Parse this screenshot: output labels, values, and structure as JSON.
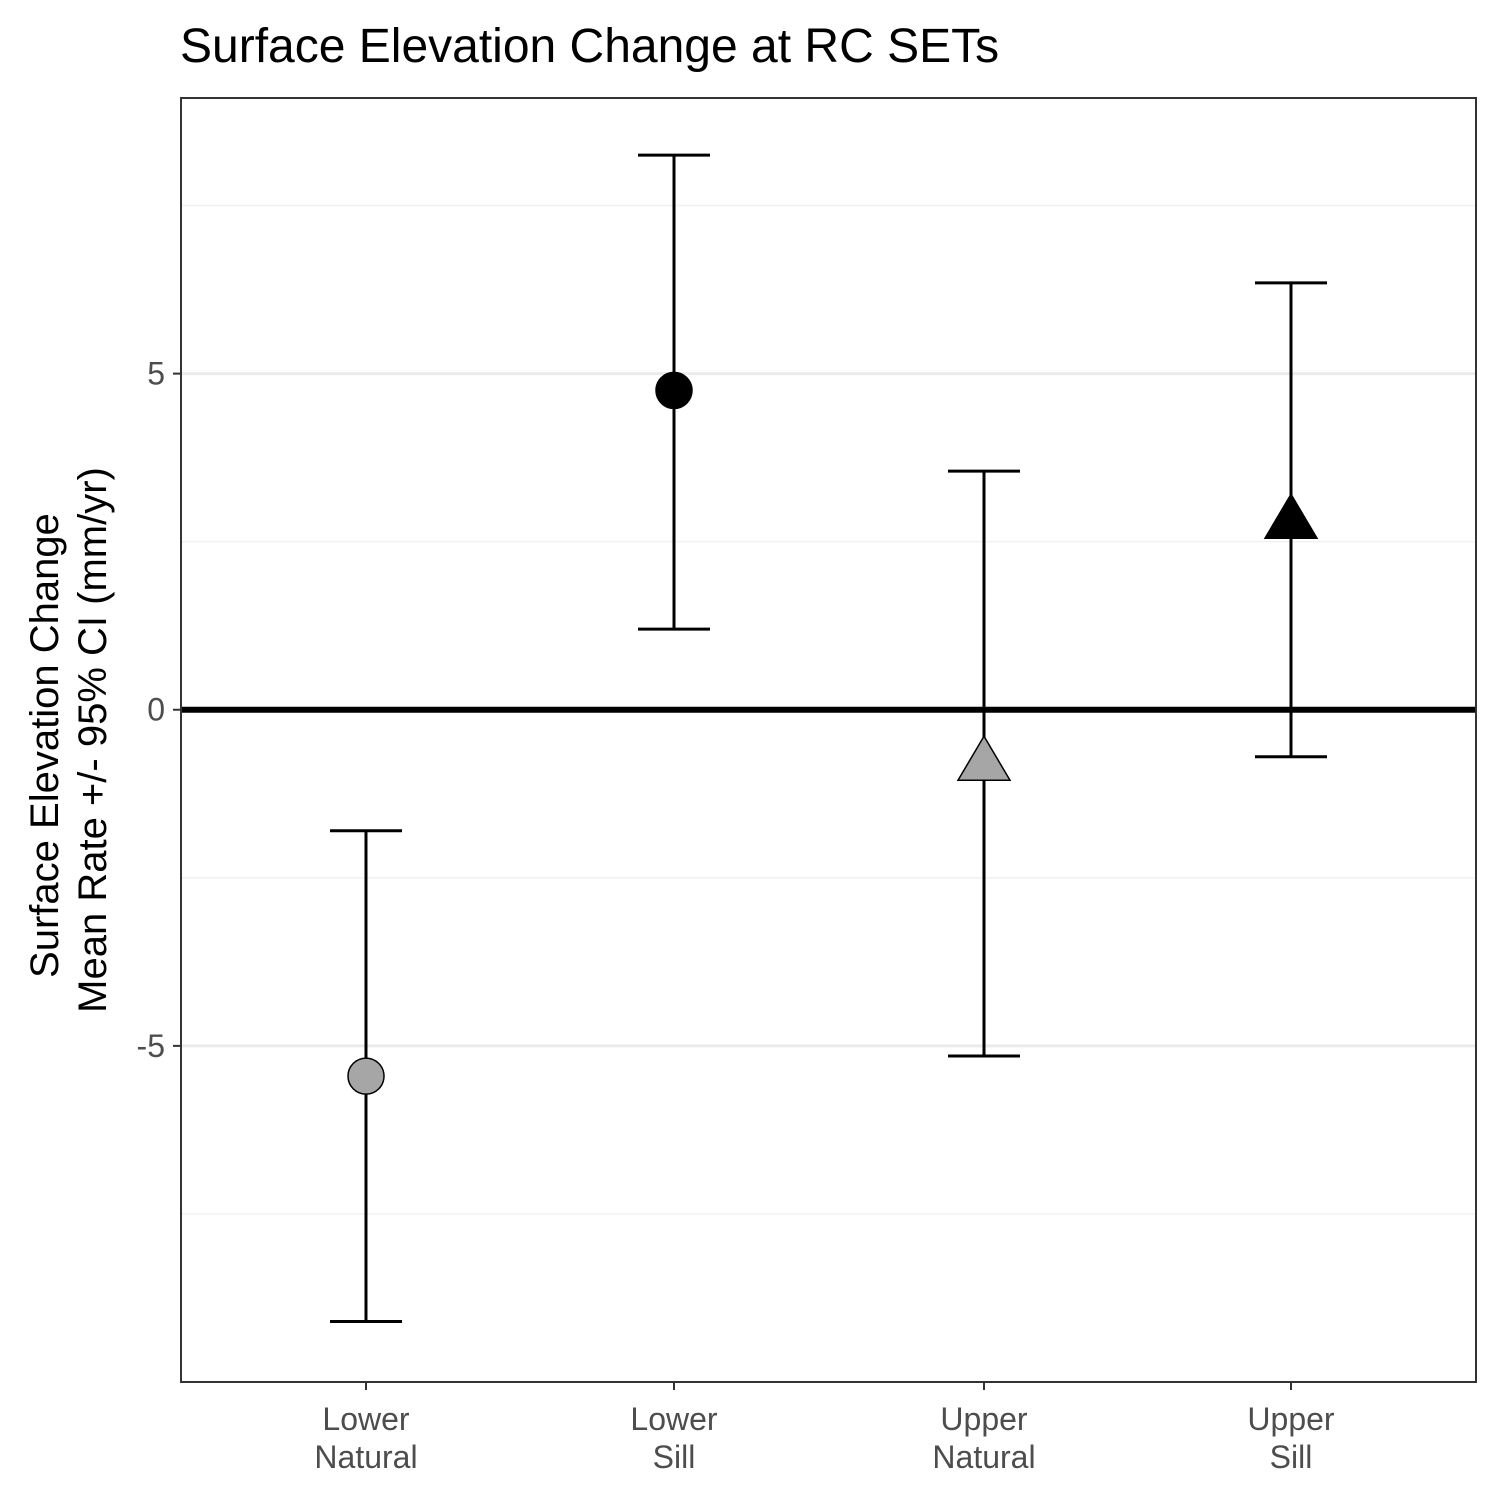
{
  "chart_data": {
    "type": "scatter",
    "title": "Surface Elevation Change at RC SETs",
    "xlabel": "",
    "ylabel_lines": [
      "Surface Elevation Change",
      "Mean Rate +/- 95% CI (mm/yr)"
    ],
    "ylim": [
      -10,
      9.1
    ],
    "yticks": [
      -5,
      0,
      5
    ],
    "ytick_labels": [
      "-5",
      "0",
      "5"
    ],
    "y_minor_grid": [
      -7.5,
      -2.5,
      2.5,
      7.5
    ],
    "reference_line_y": 0,
    "categories": [
      {
        "lines": [
          "Lower",
          "Natural"
        ]
      },
      {
        "lines": [
          "Lower",
          "Sill"
        ]
      },
      {
        "lines": [
          "Upper",
          "Natural"
        ]
      },
      {
        "lines": [
          "Upper",
          "Sill"
        ]
      }
    ],
    "points": [
      {
        "category_index": 0,
        "mean": -5.45,
        "lower": -9.1,
        "upper": -1.8,
        "shape": "circle",
        "fill": "#a6a6a6"
      },
      {
        "category_index": 1,
        "mean": 4.75,
        "lower": 1.2,
        "upper": 8.25,
        "shape": "circle",
        "fill": "#000000"
      },
      {
        "category_index": 2,
        "mean": -0.8,
        "lower": -5.15,
        "upper": 3.55,
        "shape": "triangle",
        "fill": "#a6a6a6"
      },
      {
        "category_index": 3,
        "mean": 2.8,
        "lower": -0.7,
        "upper": 6.35,
        "shape": "triangle",
        "fill": "#000000"
      }
    ],
    "grid": true,
    "colors": {
      "grid_major": "#ebebeb",
      "grid_minor": "#f2f2f2",
      "panel_border": "#333333",
      "ref_line": "#000000",
      "errorbar": "#000000",
      "tick_label": "#4d4d4d"
    }
  }
}
